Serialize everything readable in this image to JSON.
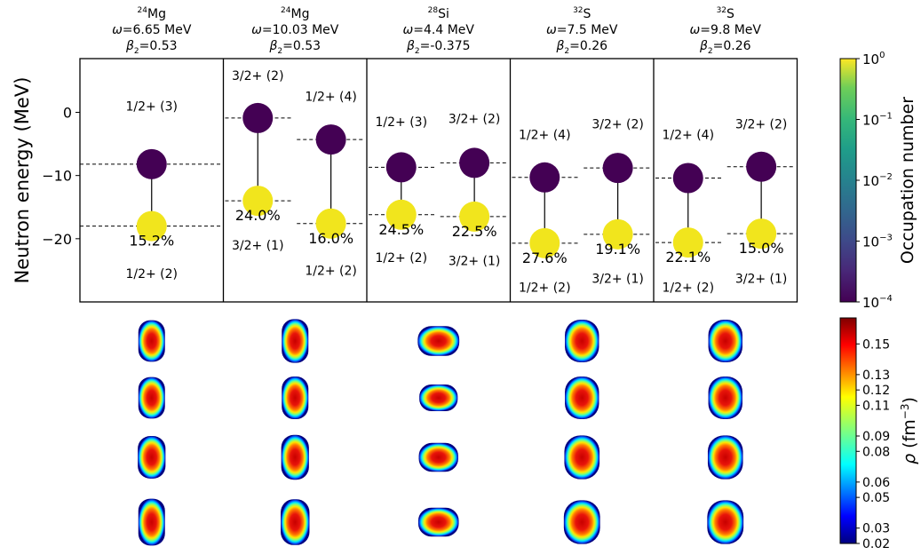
{
  "chart_data": {
    "type": "scatter",
    "ylabel": "Neutron energy  (MeV)",
    "ylim": [
      -30,
      8.5
    ],
    "yticks": [
      0,
      -10,
      -20
    ],
    "ytick_labels": [
      "0",
      "−10",
      "−20"
    ],
    "panels": [
      {
        "header": {
          "nucleus_mass": "24",
          "nucleus_symbol": "Mg",
          "omega": "=6.65 MeV",
          "beta": "=0.53"
        },
        "transitions": [
          {
            "upper": -8.2,
            "lower": -18.0,
            "top_label": "1/2+ (3)",
            "bottom_label": "1/2+ (2)",
            "percent": "15.2%",
            "line_span": "full",
            "top_label_energy": 1.0,
            "bottom_label_energy": -25.5
          }
        ]
      },
      {
        "header": {
          "nucleus_mass": "24",
          "nucleus_symbol": "Mg",
          "omega": "=10.03 MeV",
          "beta": "=0.53"
        },
        "transitions": [
          {
            "upper": -0.9,
            "lower": -14.0,
            "top_label": "3/2+ (2)",
            "bottom_label": "3/2+ (1)",
            "percent": "24.0%",
            "line_span": "left",
            "top_label_energy": 5.8,
            "bottom_label_energy": -21.0
          },
          {
            "upper": -4.3,
            "lower": -17.6,
            "top_label": "1/2+ (4)",
            "bottom_label": "1/2+ (2)",
            "percent": "16.0%",
            "line_span": "right",
            "top_label_energy": 2.5,
            "bottom_label_energy": -25.0
          }
        ]
      },
      {
        "header": {
          "nucleus_mass": "28",
          "nucleus_symbol": "Si",
          "omega": "=4.4 MeV",
          "beta": "=-0.375"
        },
        "transitions": [
          {
            "upper": -8.7,
            "lower": -16.2,
            "top_label": "1/2+ (3)",
            "bottom_label": "1/2+ (2)",
            "percent": "24.5%",
            "line_span": "left",
            "top_label_energy": -1.5,
            "bottom_label_energy": -23.0
          },
          {
            "upper": -8.0,
            "lower": -16.5,
            "top_label": "3/2+ (2)",
            "bottom_label": "3/2+ (1)",
            "percent": "22.5%",
            "line_span": "right",
            "top_label_energy": -1.0,
            "bottom_label_energy": -23.5
          }
        ]
      },
      {
        "header": {
          "nucleus_mass": "32",
          "nucleus_symbol": "S",
          "omega": "=7.5 MeV",
          "beta": "=0.26"
        },
        "transitions": [
          {
            "upper": -10.3,
            "lower": -20.7,
            "top_label": "1/2+ (4)",
            "bottom_label": "1/2+ (2)",
            "percent": "27.6%",
            "line_span": "left",
            "top_label_energy": -3.5,
            "bottom_label_energy": -27.7
          },
          {
            "upper": -8.8,
            "lower": -19.3,
            "top_label": "3/2+ (2)",
            "bottom_label": "3/2+ (1)",
            "percent": "19.1%",
            "line_span": "right",
            "top_label_energy": -1.8,
            "bottom_label_energy": -26.3
          }
        ]
      },
      {
        "header": {
          "nucleus_mass": "32",
          "nucleus_symbol": "S",
          "omega": "=9.8 MeV",
          "beta": "=0.26"
        },
        "transitions": [
          {
            "upper": -10.4,
            "lower": -20.6,
            "top_label": "1/2+ (4)",
            "bottom_label": "1/2+ (2)",
            "percent": "22.1%",
            "line_span": "left",
            "top_label_energy": -3.5,
            "bottom_label_energy": -27.7
          },
          {
            "upper": -8.6,
            "lower": -19.2,
            "top_label": "3/2+ (2)",
            "bottom_label": "3/2+ (1)",
            "percent": "15.0%",
            "line_span": "right",
            "top_label_energy": -1.8,
            "bottom_label_energy": -26.3
          }
        ]
      }
    ],
    "occupation_colorbar": {
      "label": "Occupation number",
      "scale": "log",
      "colormap": "viridis",
      "tick_base": "10",
      "tick_exponents": [
        "0",
        "−1",
        "−2",
        "−3",
        "−4"
      ]
    },
    "density_colorbar": {
      "label_symbol": "ρ",
      "label_unit": " (fm",
      "label_exp": "−3",
      "label_close": ")",
      "colormap": "jet",
      "range": [
        0.02,
        0.16
      ],
      "ticks": [
        "0.15",
        "0.13",
        "0.12",
        "0.11",
        "0.09",
        "0.08",
        "0.06",
        "0.05",
        "0.03",
        "0.02"
      ]
    },
    "density_maps": {
      "rows": 4,
      "note_shapes": [
        [
          [
            0.5,
            0.78
          ],
          [
            0.5,
            0.78
          ],
          [
            0.52,
            0.8
          ],
          [
            0.5,
            0.88
          ]
        ],
        [
          [
            0.5,
            0.82
          ],
          [
            0.5,
            0.8
          ],
          [
            0.52,
            0.84
          ],
          [
            0.54,
            0.86
          ]
        ],
        [
          [
            0.78,
            0.56
          ],
          [
            0.72,
            0.5
          ],
          [
            0.74,
            0.54
          ],
          [
            0.76,
            0.54
          ]
        ],
        [
          [
            0.64,
            0.8
          ],
          [
            0.64,
            0.8
          ],
          [
            0.66,
            0.82
          ],
          [
            0.68,
            0.82
          ]
        ],
        [
          [
            0.64,
            0.8
          ],
          [
            0.64,
            0.8
          ],
          [
            0.66,
            0.82
          ],
          [
            0.68,
            0.82
          ]
        ]
      ]
    },
    "colors": {
      "occupied": "#f1e51d",
      "empty": "#440154",
      "frame": "#000000"
    }
  }
}
